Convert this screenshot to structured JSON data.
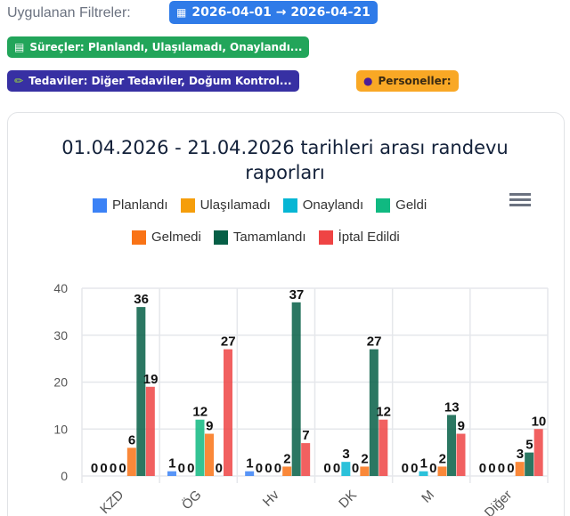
{
  "filters": {
    "label": "Uygulanan Filtreler:",
    "date_chip": {
      "icon": "calendar-icon",
      "text": "2026-04-01 → 2026-04-21",
      "color": "#2f7be8"
    },
    "process_chip": {
      "icon": "chart-icon",
      "text": "Süreçler: Planlandı, Ulaşılamadı, Onaylandı...",
      "color": "#22a55a"
    },
    "treatment_chip": {
      "icon": "syringe-icon",
      "text": "Tedaviler: Diğer Tedaviler, Doğum Kontrol...",
      "color": "#3730a3"
    },
    "staff_chip": {
      "icon": "user-icon",
      "text": "Personeller:",
      "color": "#f9a825"
    }
  },
  "chart_data": {
    "type": "bar",
    "title": "01.04.2026 - 21.04.2026 tarihleri arası randevu raporları",
    "xlabel": "",
    "ylabel": "",
    "ylim": [
      0,
      40
    ],
    "yticks": [
      0,
      10,
      20,
      30,
      40
    ],
    "grid": true,
    "legend_position": "top",
    "categories": [
      "KZD",
      "ÖG",
      "Hv",
      "DK",
      "M",
      "Diğer"
    ],
    "series": [
      {
        "name": "Planlandı",
        "color": "#3b82f6",
        "values": [
          0,
          1,
          1,
          0,
          0,
          0
        ]
      },
      {
        "name": "Ulaşılamadı",
        "color": "#f59e0b",
        "values": [
          0,
          0,
          0,
          0,
          0,
          0
        ]
      },
      {
        "name": "Onaylandı",
        "color": "#06b6d4",
        "values": [
          0,
          0,
          0,
          3,
          1,
          0
        ]
      },
      {
        "name": "Geldi",
        "color": "#10b981",
        "values": [
          0,
          12,
          0,
          0,
          0,
          0
        ]
      },
      {
        "name": "Gelmedi",
        "color": "#f97316",
        "values": [
          6,
          9,
          2,
          2,
          2,
          3
        ]
      },
      {
        "name": "Tamamlandı",
        "color": "#065f46",
        "values": [
          36,
          0,
          37,
          27,
          13,
          5
        ]
      },
      {
        "name": "İptal Edildi",
        "color": "#ef4444",
        "values": [
          19,
          27,
          7,
          12,
          9,
          10
        ]
      }
    ]
  },
  "chart": {
    "menu_icon": "hamburger-menu-icon"
  }
}
